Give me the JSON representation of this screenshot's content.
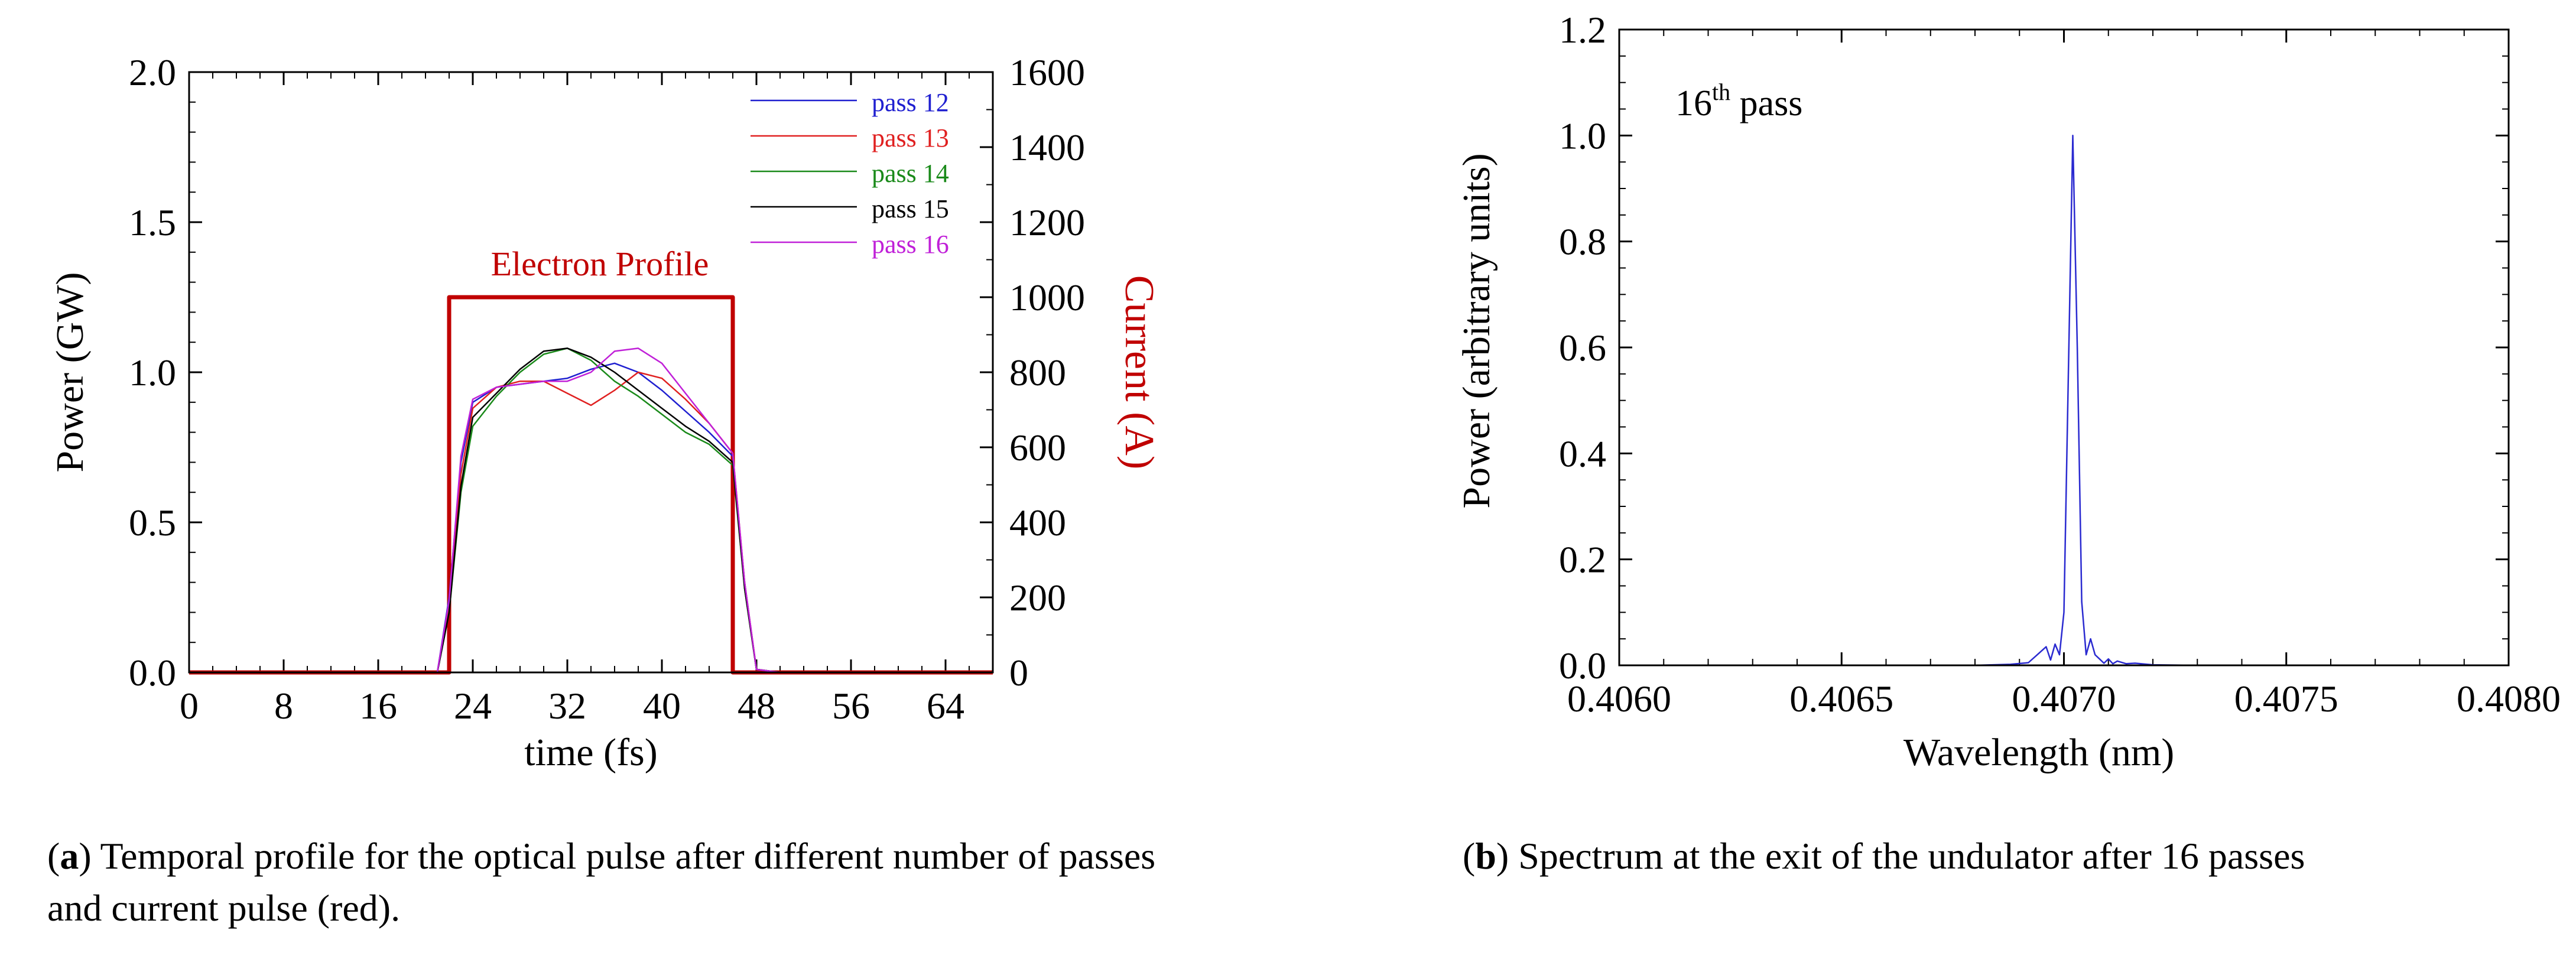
{
  "chart_data": [
    {
      "type": "line",
      "panel": "a",
      "xlabel": "time (fs)",
      "ylabel": "Power (GW)",
      "y2label": "Current (A)",
      "xlim": [
        0,
        68
      ],
      "ylim": [
        0,
        2.0
      ],
      "y2lim": [
        0,
        1600
      ],
      "xticks": [
        0,
        8,
        16,
        24,
        32,
        40,
        48,
        56,
        64
      ],
      "yticks": [
        "0.0",
        "0.5",
        "1.0",
        "1.5",
        "2.0"
      ],
      "y2ticks": [
        0,
        200,
        400,
        600,
        800,
        1000,
        1200,
        1400,
        1600
      ],
      "annotation": "Electron Profile",
      "legend_position": "top-right",
      "series": [
        {
          "name": "pass 12",
          "color": "#1f1fd0",
          "x": [
            0,
            21,
            22,
            23,
            24,
            26,
            28,
            30,
            32,
            34,
            36,
            38,
            40,
            42,
            44,
            46,
            47,
            48,
            50,
            68
          ],
          "y": [
            0,
            0,
            0.25,
            0.7,
            0.9,
            0.95,
            0.96,
            0.97,
            0.98,
            1.01,
            1.03,
            1.0,
            0.94,
            0.87,
            0.8,
            0.72,
            0.3,
            0.01,
            0,
            0
          ]
        },
        {
          "name": "pass 13",
          "color": "#e02020",
          "x": [
            0,
            21,
            22,
            23,
            24,
            26,
            28,
            30,
            32,
            34,
            36,
            38,
            40,
            42,
            44,
            46,
            47,
            48,
            50,
            68
          ],
          "y": [
            0,
            0,
            0.22,
            0.66,
            0.88,
            0.95,
            0.97,
            0.97,
            0.93,
            0.89,
            0.94,
            1.0,
            0.98,
            0.91,
            0.83,
            0.73,
            0.3,
            0.01,
            0,
            0
          ]
        },
        {
          "name": "pass 14",
          "color": "#1a8a1a",
          "x": [
            0,
            21,
            22,
            23,
            24,
            26,
            28,
            30,
            32,
            34,
            36,
            38,
            40,
            42,
            44,
            46,
            47,
            48,
            50,
            68
          ],
          "y": [
            0,
            0,
            0.2,
            0.6,
            0.82,
            0.92,
            1.0,
            1.06,
            1.08,
            1.04,
            0.97,
            0.92,
            0.86,
            0.8,
            0.76,
            0.69,
            0.28,
            0.01,
            0,
            0
          ]
        },
        {
          "name": "pass 15",
          "color": "#000000",
          "x": [
            0,
            21,
            22,
            23,
            24,
            26,
            28,
            30,
            32,
            34,
            36,
            38,
            40,
            42,
            44,
            46,
            47,
            48,
            50,
            68
          ],
          "y": [
            0,
            0,
            0.2,
            0.62,
            0.85,
            0.93,
            1.01,
            1.07,
            1.08,
            1.05,
            1.0,
            0.94,
            0.88,
            0.82,
            0.77,
            0.7,
            0.28,
            0.01,
            0,
            0
          ]
        },
        {
          "name": "pass 16",
          "color": "#c020d8",
          "x": [
            0,
            21,
            22,
            23,
            24,
            26,
            28,
            30,
            32,
            34,
            36,
            38,
            40,
            42,
            44,
            46,
            47,
            48,
            50,
            68
          ],
          "y": [
            0,
            0,
            0.24,
            0.72,
            0.91,
            0.95,
            0.96,
            0.97,
            0.97,
            1.0,
            1.07,
            1.08,
            1.03,
            0.93,
            0.83,
            0.73,
            0.3,
            0.01,
            0,
            0
          ]
        },
        {
          "name": "Electron Profile",
          "color": "#c00000",
          "axis": "right",
          "x": [
            0,
            22,
            22,
            46,
            46,
            68
          ],
          "y": [
            0,
            0,
            1000,
            1000,
            0,
            0
          ]
        }
      ]
    },
    {
      "type": "line",
      "panel": "b",
      "xlabel": "Wavelength (nm)",
      "ylabel": "Power (arbitrary units)",
      "xlim": [
        0.406,
        0.408
      ],
      "ylim": [
        0,
        1.2
      ],
      "xticks": [
        "0.4060",
        "0.4065",
        "0.4070",
        "0.4075",
        "0.4080"
      ],
      "yticks": [
        "0.0",
        "0.2",
        "0.4",
        "0.6",
        "0.8",
        "1.0",
        "1.2"
      ],
      "annotation": {
        "base": "16",
        "sup": "th",
        "rest": " pass"
      },
      "series": [
        {
          "name": "16th pass spectrum",
          "color": "#2a2ad0",
          "x": [
            0.406,
            0.4068,
            0.40688,
            0.40692,
            0.40694,
            0.40696,
            0.40697,
            0.40698,
            0.40699,
            0.407,
            0.40701,
            0.40702,
            0.40703,
            0.40704,
            0.40705,
            0.40706,
            0.40707,
            0.40708,
            0.40709,
            0.4071,
            0.40711,
            0.40712,
            0.40714,
            0.40716,
            0.4072,
            0.4073,
            0.408
          ],
          "y": [
            0,
            0,
            0.002,
            0.005,
            0.02,
            0.035,
            0.01,
            0.04,
            0.02,
            0.1,
            0.55,
            1.0,
            0.6,
            0.12,
            0.02,
            0.05,
            0.02,
            0.012,
            0.004,
            0.012,
            0.003,
            0.008,
            0.003,
            0.004,
            0.001,
            0,
            0
          ]
        }
      ]
    }
  ],
  "captions": {
    "a": {
      "label": "a",
      "text": "Temporal profile for the optical pulse after different number of passes and current pulse (red)."
    },
    "b": {
      "label": "b",
      "text": "Spectrum at the exit of the undulator after 16 passes"
    }
  }
}
